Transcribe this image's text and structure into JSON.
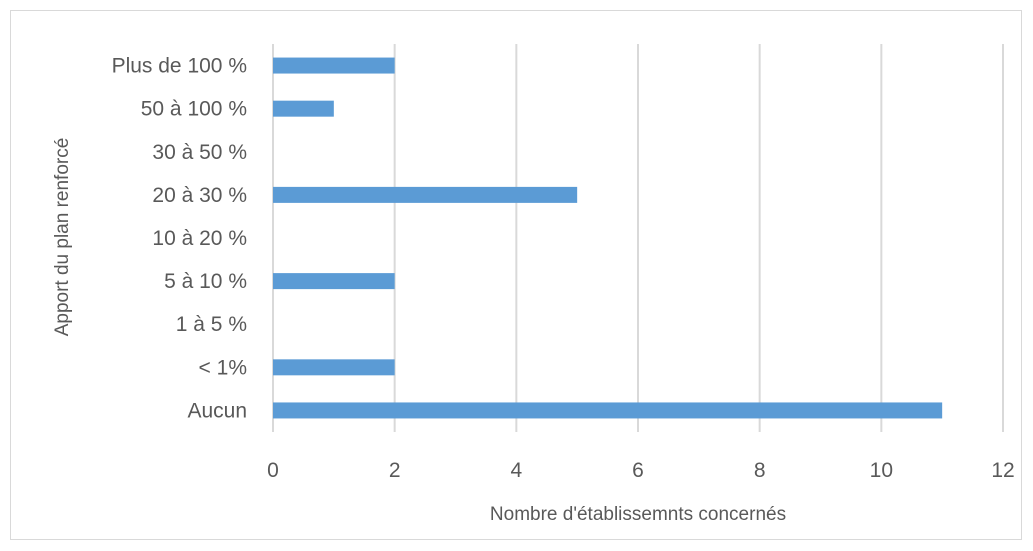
{
  "chart_data": {
    "type": "bar",
    "orientation": "horizontal",
    "categories": [
      "Aucun",
      "< 1%",
      "1 à 5 %",
      "5 à 10 %",
      "10 à 20 %",
      "20 à 30 %",
      "30 à 50 %",
      "50 à 100 %",
      "Plus de 100 %"
    ],
    "values": [
      11,
      2,
      0,
      2,
      0,
      5,
      0,
      1,
      2
    ],
    "xlim": [
      0,
      12
    ],
    "xticks": [
      0,
      2,
      4,
      6,
      8,
      10,
      12
    ],
    "xlabel": "Nombre d'établissemnts concernés",
    "ylabel": "Apport du plan renforcé",
    "grid": "vertical",
    "legend": "none",
    "bar_color": "#5b9bd5",
    "grid_color": "#d9d9d9",
    "text_color": "#595959"
  }
}
